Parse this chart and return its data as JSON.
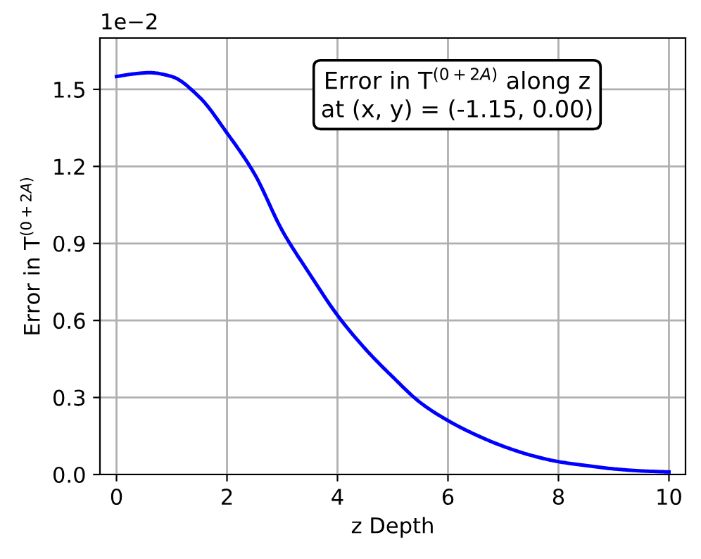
{
  "chart_data": {
    "type": "line",
    "xlabel": "z Depth",
    "ylabel": "Error in T$^{(0+2A)}$",
    "annotations": [
      "1e−2",
      "Error in T$^{(0+2A)}$ along z\nat (x, y) = (-1.15, 0.00)"
    ],
    "x": [
      0,
      0.3,
      0.6,
      1.0,
      1.5,
      2,
      2.5,
      3,
      3.5,
      4,
      4.5,
      5,
      5.5,
      6,
      6.5,
      7,
      7.5,
      8,
      8.5,
      9,
      9.5,
      10
    ],
    "series": [
      {
        "color": "#0000ff",
        "values": [
          1.55,
          1.56,
          1.565,
          1.55,
          1.47,
          1.33,
          1.17,
          0.95,
          0.78,
          0.62,
          0.49,
          0.38,
          0.28,
          0.21,
          0.155,
          0.11,
          0.075,
          0.05,
          0.035,
          0.022,
          0.014,
          0.01
        ]
      }
    ],
    "xlim": [
      -0.3,
      10.3
    ],
    "ylim": [
      0,
      1.7
    ],
    "xticks": [
      0,
      2,
      4,
      6,
      8,
      10
    ],
    "yticks": [
      {
        "value": 0,
        "label": "0.0"
      },
      0.3,
      0.6,
      0.9,
      1.2,
      1.5
    ],
    "grid": true,
    "legend": false,
    "marker": "none",
    "line_style": "solid"
  }
}
